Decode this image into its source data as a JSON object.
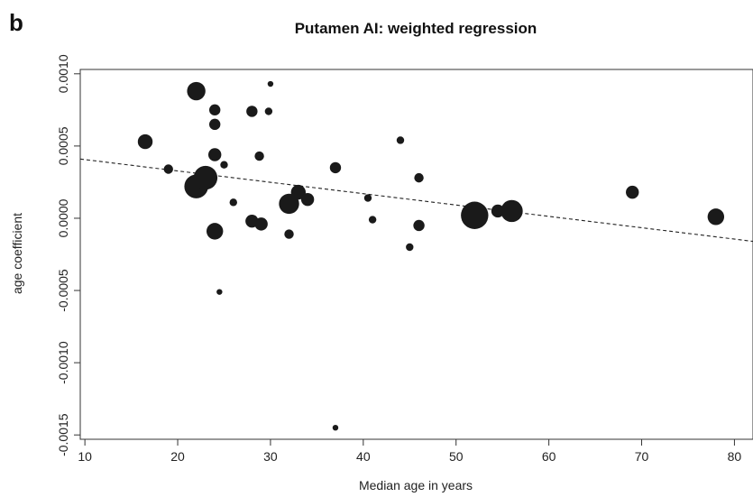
{
  "panel_label": "b",
  "chart_data": {
    "type": "scatter",
    "title": "Putamen AI: weighted regression",
    "xlabel": "Median age in years",
    "ylabel": "age coefficient",
    "xlim": [
      9.5,
      82
    ],
    "ylim": [
      -0.00153,
      0.00103
    ],
    "x_ticks": [
      10,
      20,
      30,
      40,
      50,
      60,
      70,
      80
    ],
    "x_tick_labels": [
      "10",
      "20",
      "30",
      "40",
      "50",
      "60",
      "70",
      "80"
    ],
    "y_ticks": [
      0.001,
      0.0005,
      0.0,
      -0.0005,
      -0.001,
      -0.0015
    ],
    "y_tick_labels": [
      "0.0010",
      "0.0005",
      "0.0000",
      "-0.0005",
      "-0.0010",
      "-0.0015"
    ],
    "grid": false,
    "point_color": "#1a1a1a",
    "points": [
      {
        "x": 16.5,
        "y": 0.00053,
        "weight": 7
      },
      {
        "x": 19.0,
        "y": 0.00034,
        "weight": 4
      },
      {
        "x": 22.0,
        "y": 0.00088,
        "weight": 9
      },
      {
        "x": 22.0,
        "y": 0.00022,
        "weight": 12
      },
      {
        "x": 23.0,
        "y": 0.00028,
        "weight": 12
      },
      {
        "x": 24.0,
        "y": 0.00075,
        "weight": 5
      },
      {
        "x": 24.0,
        "y": 0.00065,
        "weight": 5
      },
      {
        "x": 24.0,
        "y": 0.00044,
        "weight": 6
      },
      {
        "x": 24.0,
        "y": -9e-05,
        "weight": 8
      },
      {
        "x": 24.5,
        "y": -0.00051,
        "weight": 2
      },
      {
        "x": 25.0,
        "y": 0.00037,
        "weight": 3
      },
      {
        "x": 26.0,
        "y": 0.00011,
        "weight": 3
      },
      {
        "x": 28.0,
        "y": 0.00074,
        "weight": 5
      },
      {
        "x": 28.0,
        "y": -2e-05,
        "weight": 6
      },
      {
        "x": 28.8,
        "y": 0.00043,
        "weight": 4
      },
      {
        "x": 29.0,
        "y": -4e-05,
        "weight": 6
      },
      {
        "x": 29.8,
        "y": 0.00074,
        "weight": 3
      },
      {
        "x": 30.0,
        "y": 0.00093,
        "weight": 2
      },
      {
        "x": 32.0,
        "y": 0.0001,
        "weight": 10
      },
      {
        "x": 32.0,
        "y": -0.00011,
        "weight": 4
      },
      {
        "x": 33.0,
        "y": 0.00018,
        "weight": 7
      },
      {
        "x": 34.0,
        "y": 0.00013,
        "weight": 6
      },
      {
        "x": 37.0,
        "y": 0.00035,
        "weight": 5
      },
      {
        "x": 37.0,
        "y": -0.00145,
        "weight": 2
      },
      {
        "x": 40.5,
        "y": 0.00014,
        "weight": 3
      },
      {
        "x": 41.0,
        "y": -1e-05,
        "weight": 3
      },
      {
        "x": 44.0,
        "y": 0.00054,
        "weight": 3
      },
      {
        "x": 45.0,
        "y": -0.0002,
        "weight": 3
      },
      {
        "x": 46.0,
        "y": 0.00028,
        "weight": 4
      },
      {
        "x": 46.0,
        "y": -5e-05,
        "weight": 5
      },
      {
        "x": 52.0,
        "y": 2e-05,
        "weight": 14
      },
      {
        "x": 54.5,
        "y": 5e-05,
        "weight": 6
      },
      {
        "x": 56.0,
        "y": 5e-05,
        "weight": 11
      },
      {
        "x": 69.0,
        "y": 0.00018,
        "weight": 6
      },
      {
        "x": 78.0,
        "y": 1e-05,
        "weight": 8
      }
    ],
    "regression_line": {
      "style": "dashed",
      "x": [
        9.5,
        82
      ],
      "y": [
        0.00041,
        -0.00016
      ]
    }
  }
}
